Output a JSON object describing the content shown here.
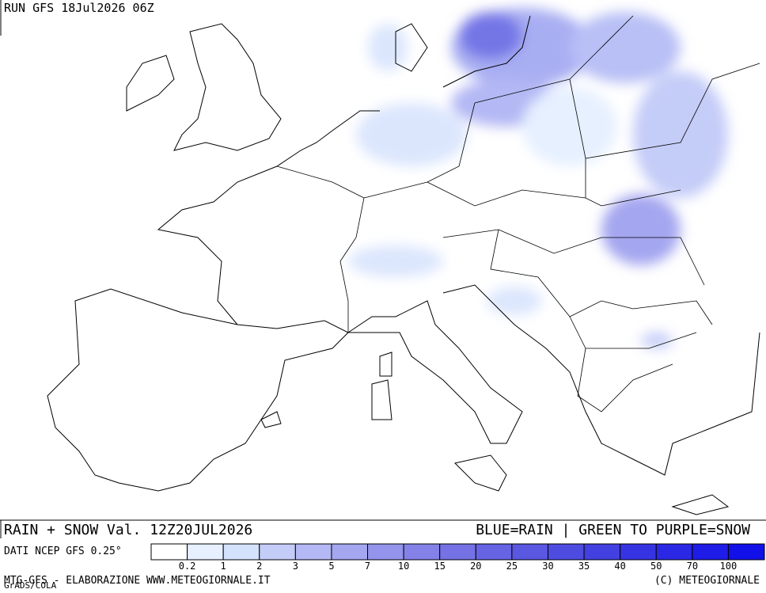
{
  "header": {
    "run": "RUN GFS 18Jul2026 06Z"
  },
  "caption": {
    "left": "RAIN + SNOW Val. 12Z20JUL2026",
    "right": "BLUE=RAIN | GREEN TO PURPLE=SNOW"
  },
  "legend": {
    "source": "DATI NCEP GFS 0.25°",
    "colors": [
      "#ffffff",
      "#e6f0ff",
      "#d4e2fc",
      "#c4ccf8",
      "#b4b8f4",
      "#a4a6f0",
      "#9494ec",
      "#8482e8",
      "#7472e4",
      "#6664e2",
      "#5a58e0",
      "#4e4ce0",
      "#4240e0",
      "#3634e2",
      "#2a28e4",
      "#1e1ce6",
      "#1210e8"
    ],
    "levels": [
      0.2,
      1,
      2,
      3,
      5,
      7,
      10,
      15,
      20,
      25,
      30,
      35,
      40,
      50,
      70,
      100
    ]
  },
  "footer": {
    "left": "MTG-GFS - ELABORAZIONE WWW.METEOGIORNALE.IT",
    "right": "(C) METEOGIORNALE",
    "credit": "GrADS/COLA"
  }
}
